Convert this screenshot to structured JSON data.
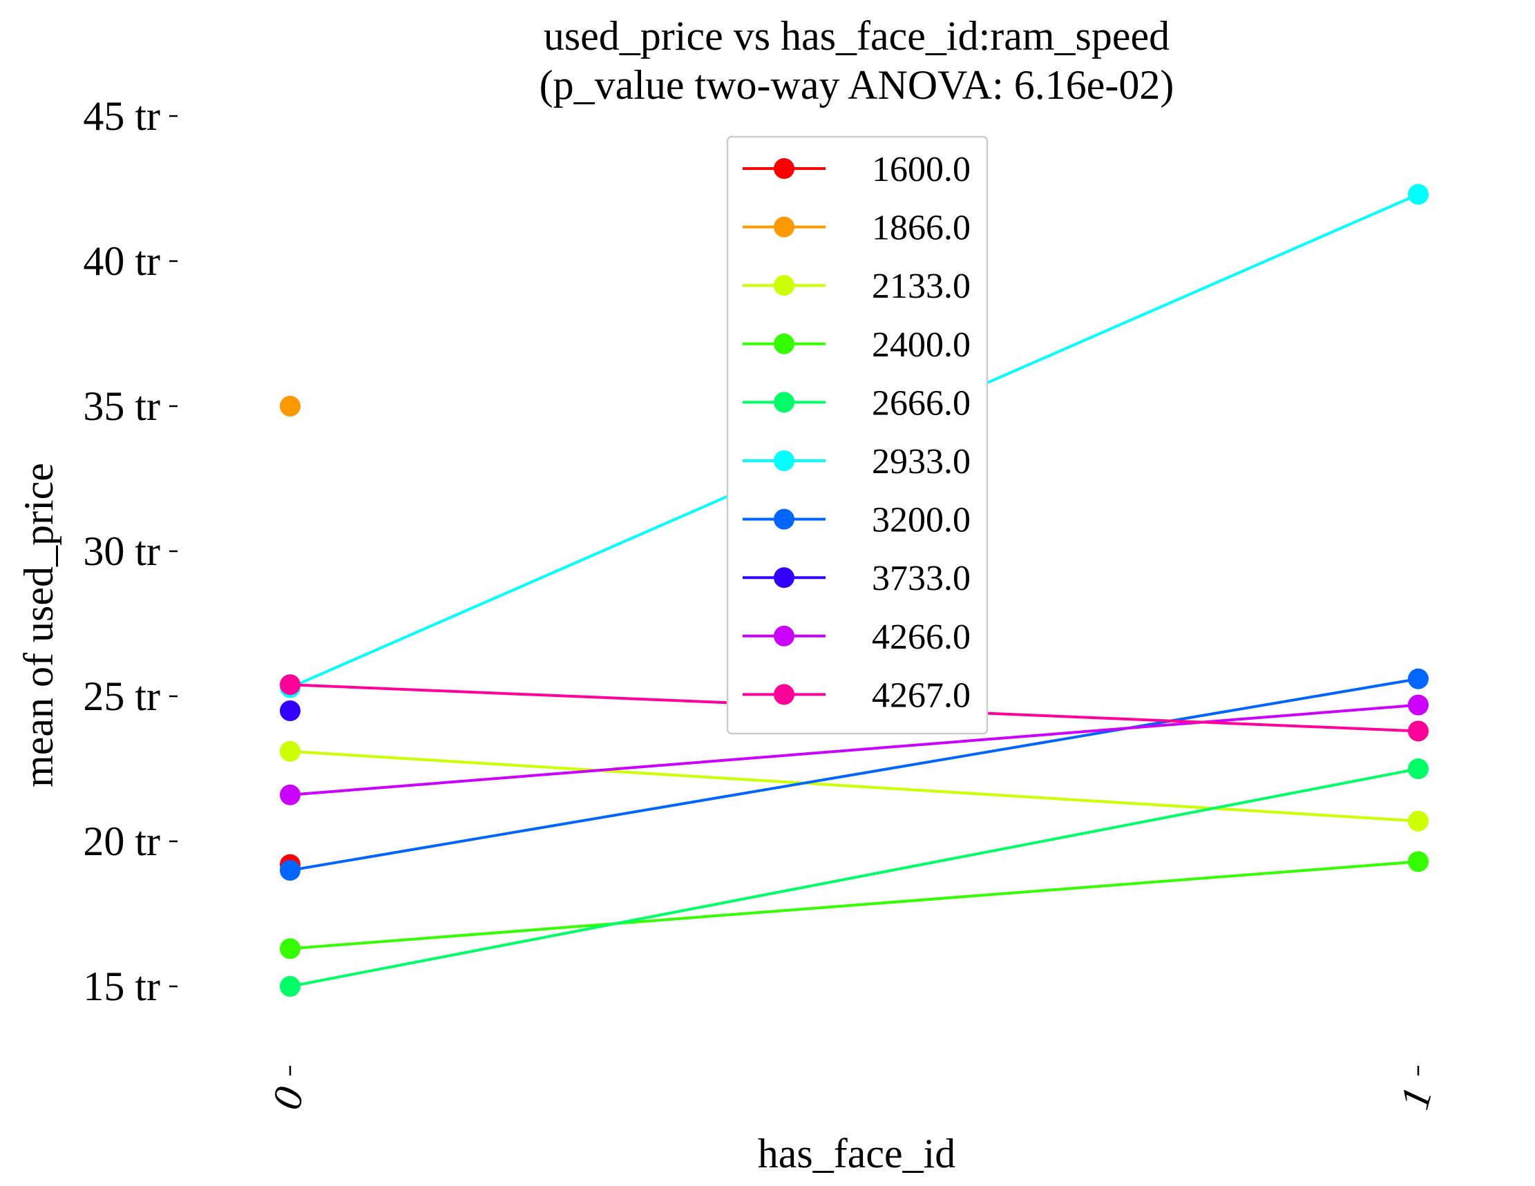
{
  "chart_data": {
    "type": "line",
    "title": "used_price vs has_face_id:ram_speed",
    "subtitle": "(p_value two-way ANOVA: 6.16e-02)",
    "xlabel": "has_face_id",
    "ylabel": "mean of used_price",
    "categories": [
      "0",
      "1"
    ],
    "y_ticks": [
      15,
      20,
      25,
      30,
      35,
      40,
      45
    ],
    "y_tick_labels": [
      "15 tr",
      "20 tr",
      "25 tr",
      "30 tr",
      "35 tr",
      "40 tr",
      "45 tr"
    ],
    "ylim": [
      12.5,
      45
    ],
    "grid": false,
    "legend_position": "upper-center",
    "series": [
      {
        "name": "1600.0",
        "color": "#ff0000",
        "values": [
          19.2,
          null
        ]
      },
      {
        "name": "1866.0",
        "color": "#ff9900",
        "values": [
          35.0,
          null
        ]
      },
      {
        "name": "2133.0",
        "color": "#ccff00",
        "values": [
          23.1,
          20.7
        ]
      },
      {
        "name": "2400.0",
        "color": "#33ff00",
        "values": [
          16.3,
          19.3
        ]
      },
      {
        "name": "2666.0",
        "color": "#00ff66",
        "values": [
          15.0,
          22.5
        ]
      },
      {
        "name": "2933.0",
        "color": "#00ffff",
        "values": [
          25.3,
          42.3
        ]
      },
      {
        "name": "3200.0",
        "color": "#0066ff",
        "values": [
          19.0,
          25.6
        ]
      },
      {
        "name": "3733.0",
        "color": "#3300ff",
        "values": [
          24.5,
          null
        ]
      },
      {
        "name": "4266.0",
        "color": "#cc00ff",
        "values": [
          21.6,
          24.7
        ]
      },
      {
        "name": "4267.0",
        "color": "#ff0099",
        "values": [
          25.4,
          23.8
        ]
      }
    ]
  }
}
